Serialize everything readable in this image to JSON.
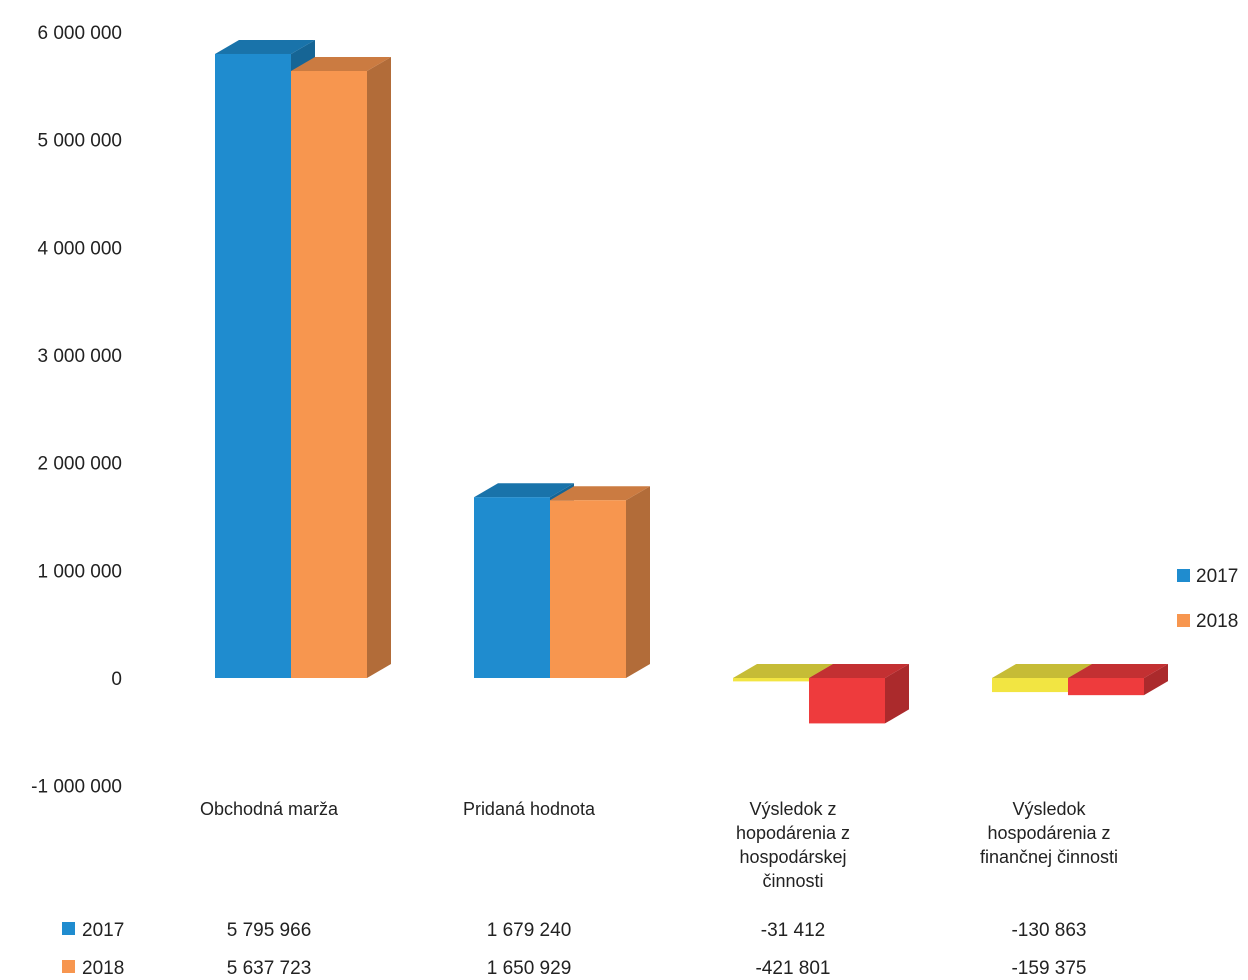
{
  "chart_data": {
    "type": "bar",
    "title": "",
    "xlabel": "",
    "ylabel": "",
    "categories": [
      [
        "Obchodná marža"
      ],
      [
        "Pridaná hodnota"
      ],
      [
        "Výsledok z",
        "hopodárenia z",
        "hospodárskej",
        "činnosti"
      ],
      [
        "Výsledok",
        "hospodárenia z",
        "finančnej činnosti"
      ]
    ],
    "series": [
      {
        "name": "2017",
        "values": [
          5795966,
          1679240,
          -31412,
          -130863
        ],
        "labels": [
          "5 795 966",
          "1 679 240",
          "-31 412",
          "-130 863"
        ]
      },
      {
        "name": "2018",
        "values": [
          5637723,
          1650929,
          -421801,
          -159375
        ],
        "labels": [
          "5 637 723",
          "1 650 929",
          "-421 801",
          "-159 375"
        ]
      }
    ],
    "ylim": [
      -1000000,
      6000000
    ],
    "yticks": [
      "6 000 000",
      "5 000 000",
      "4 000 000",
      "3 000 000",
      "2 000 000",
      "1 000 000",
      "0",
      "-1 000 000"
    ],
    "ytick_values": [
      6000000,
      5000000,
      4000000,
      3000000,
      2000000,
      1000000,
      0,
      -1000000
    ],
    "grid": false,
    "legend": "right",
    "style": "3d-clustered-column",
    "colors": {
      "2017": "#1f8ccf",
      "2018": "#f7964f",
      "negative_2017": "#f2e542",
      "negative_2018": "#ee3b3d"
    }
  }
}
